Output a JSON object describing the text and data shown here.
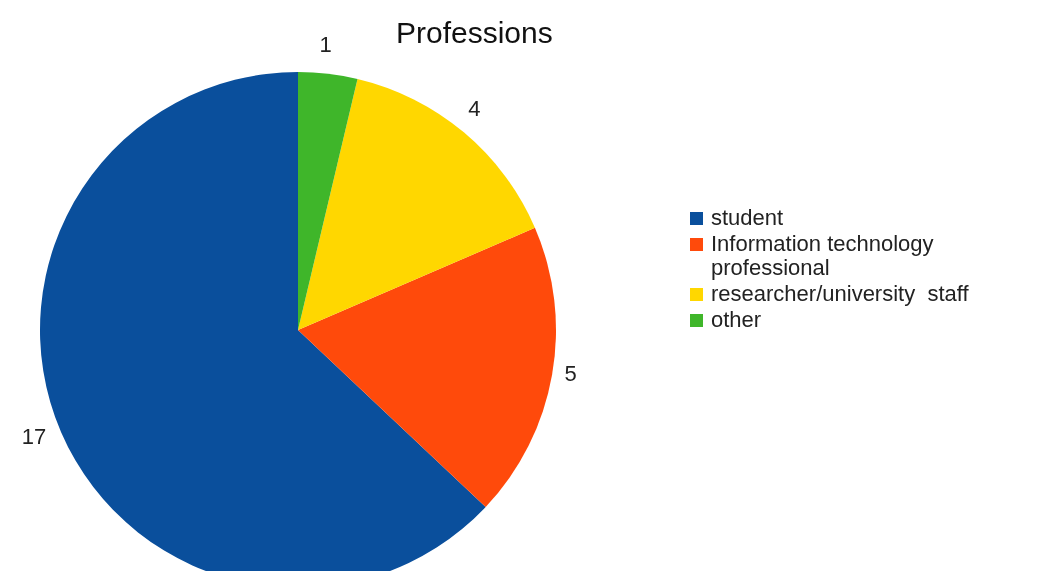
{
  "chart_data": {
    "type": "pie",
    "title": "Professions",
    "categories": [
      "student",
      "Information technology professional",
      "researcher/university  staff",
      "other"
    ],
    "values": [
      17,
      5,
      4,
      1
    ],
    "colors": [
      "#0a4f9c",
      "#ff4a0b",
      "#ffd700",
      "#3fb62a"
    ],
    "data_labels": true,
    "legend": "right"
  }
}
